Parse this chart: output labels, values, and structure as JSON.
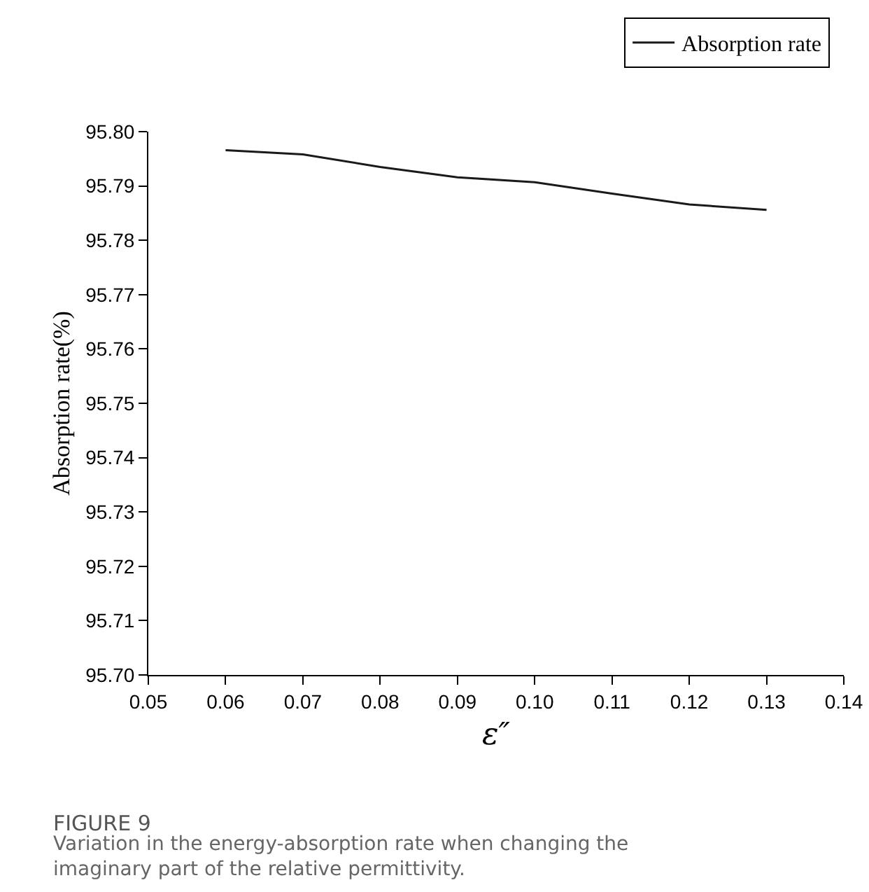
{
  "chart_data": {
    "type": "line",
    "xlabel": "ε″",
    "ylabel": "Absorption rate(%)",
    "x": [
      0.06,
      0.07,
      0.08,
      0.09,
      0.1,
      0.11,
      0.12,
      0.13
    ],
    "series": [
      {
        "name": "Absorption rate",
        "color": "#1a1a1a",
        "values": [
          95.7966,
          95.7958,
          95.7935,
          95.7916,
          95.7907,
          95.7886,
          95.7866,
          95.7856
        ]
      }
    ],
    "xlim": [
      0.05,
      0.14
    ],
    "xticks": [
      {
        "value": 0.05,
        "label": "0.05"
      },
      {
        "value": 0.06,
        "label": "0.06"
      },
      {
        "value": 0.07,
        "label": "0.07"
      },
      {
        "value": 0.08,
        "label": "0.08"
      },
      {
        "value": 0.09,
        "label": "0.09"
      },
      {
        "value": 0.1,
        "label": "0.10"
      },
      {
        "value": 0.11,
        "label": "0.11"
      },
      {
        "value": 0.12,
        "label": "0.12"
      },
      {
        "value": 0.13,
        "label": "0.13"
      },
      {
        "value": 0.14,
        "label": "0.14"
      }
    ],
    "ylim": [
      95.7,
      95.8
    ],
    "yticks": [
      {
        "value": 95.7,
        "label": "95.70"
      },
      {
        "value": 95.71,
        "label": "95.71"
      },
      {
        "value": 95.72,
        "label": "95.72"
      },
      {
        "value": 95.73,
        "label": "95.73"
      },
      {
        "value": 95.74,
        "label": "95.74"
      },
      {
        "value": 95.75,
        "label": "95.75"
      },
      {
        "value": 95.76,
        "label": "95.76"
      },
      {
        "value": 95.77,
        "label": "95.77"
      },
      {
        "value": 95.78,
        "label": "95.78"
      },
      {
        "value": 95.79,
        "label": "95.79"
      },
      {
        "value": 95.8,
        "label": "95.80"
      }
    ],
    "grid": false,
    "legend": "top right",
    "marker": "none",
    "line_style": "solid",
    "annotations": [
      "FIGURE 9",
      "Variation in the energy-absorption rate when changing the imaginary part of the relative permittivity."
    ]
  }
}
